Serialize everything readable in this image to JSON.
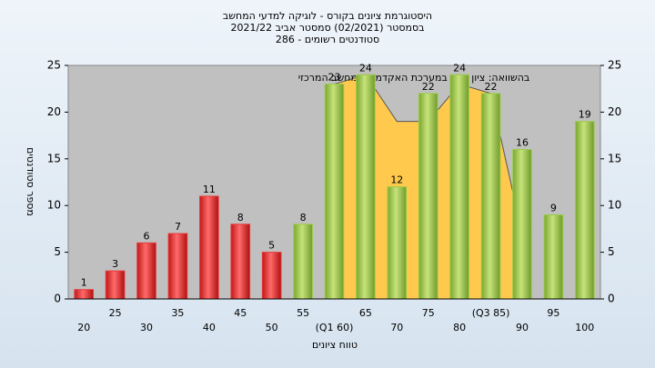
{
  "chart_data": {
    "type": "bar",
    "title": [
      "היסטוגרמת ציונים בקורס - לוגיקה למדעי המחשב",
      "בסמסטר (02/2021) סמסטר אביב 2021/22",
      "סטודנטים רשומים - 286"
    ],
    "x_label": "טווח ציונים",
    "y_label": "מספר סטודנטים",
    "categories": [
      "20",
      "25",
      "30",
      "35",
      "40",
      "45",
      "50",
      "55",
      "(Q1 60)",
      "65",
      "70",
      "75",
      "80",
      "(Q3 85)",
      "90",
      "95",
      "100"
    ],
    "values": [
      1,
      3,
      6,
      7,
      11,
      8,
      5,
      8,
      23,
      24,
      12,
      22,
      24,
      22,
      16,
      9,
      19
    ],
    "bar_colors": [
      "#e83a3a",
      "#e83a3a",
      "#e83a3a",
      "#e83a3a",
      "#e83a3a",
      "#e83a3a",
      "#e83a3a",
      "#9ccc4a",
      "#9ccc4a",
      "#9ccc4a",
      "#9ccc4a",
      "#9ccc4a",
      "#9ccc4a",
      "#9ccc4a",
      "#9ccc4a",
      "#9ccc4a",
      "#9ccc4a"
    ],
    "area": {
      "name": "בהשוואה: ציון סופי במערכת האקדמית במחשב המרכזי",
      "color": "#ffc94d",
      "values": [
        null,
        null,
        null,
        null,
        null,
        null,
        null,
        null,
        23,
        24,
        19,
        19,
        23,
        22,
        7,
        null,
        null
      ]
    },
    "ylim": [
      0,
      25
    ],
    "yticks": [
      0,
      5,
      10,
      15,
      20,
      25
    ],
    "grid": false
  }
}
